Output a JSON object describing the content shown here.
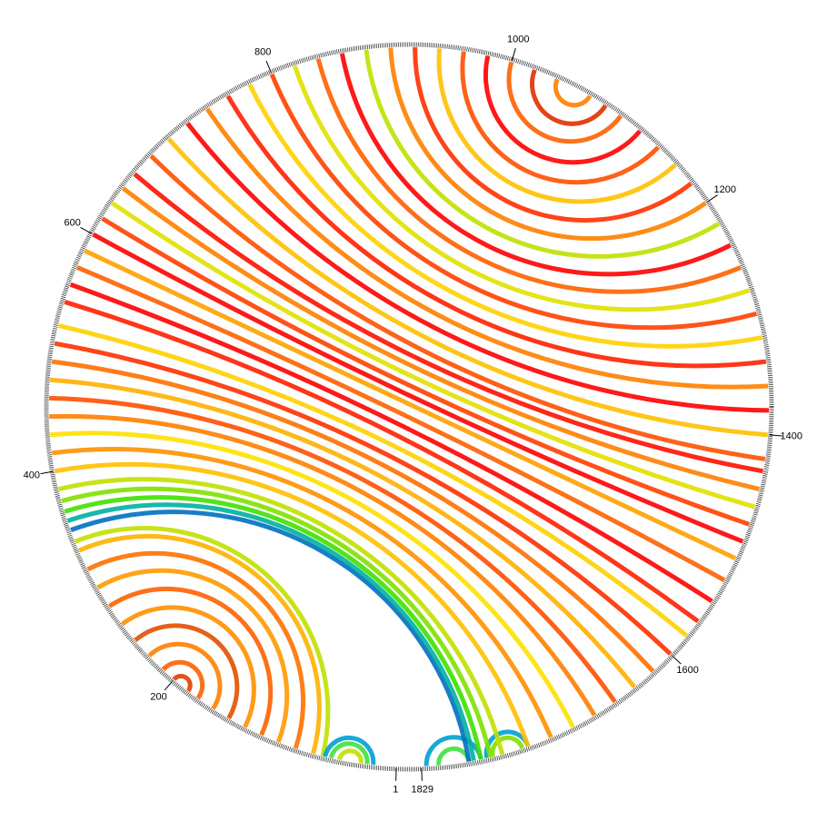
{
  "chart_data": {
    "type": "arc",
    "ticks": [
      1,
      200,
      400,
      600,
      800,
      1000,
      1200,
      1400,
      1600,
      1829
    ],
    "arcs": [
      {
        "from": 185,
        "to": 200,
        "color": "#e04000"
      },
      {
        "from": 175,
        "to": 212,
        "color": "#ff6000"
      },
      {
        "from": 160,
        "to": 228,
        "color": "#ff8000"
      },
      {
        "from": 145,
        "to": 245,
        "color": "#e05000"
      },
      {
        "from": 130,
        "to": 262,
        "color": "#ff9000"
      },
      {
        "from": 115,
        "to": 280,
        "color": "#ff6000"
      },
      {
        "from": 100,
        "to": 298,
        "color": "#ff9a00"
      },
      {
        "from": 85,
        "to": 315,
        "color": "#ff7000"
      },
      {
        "from": 70,
        "to": 332,
        "color": "#ffb000"
      },
      {
        "from": 62,
        "to": 340,
        "color": "#c0e000"
      },
      {
        "from": 20,
        "to": 60,
        "color": "#00a0d0"
      },
      {
        "from": 25,
        "to": 55,
        "color": "#40e040"
      },
      {
        "from": 30,
        "to": 48,
        "color": "#c0e000"
      },
      {
        "from": 1780,
        "to": 1825,
        "color": "#00a0d0"
      },
      {
        "from": 1790,
        "to": 1815,
        "color": "#40e040"
      },
      {
        "from": 1740,
        "to": 1775,
        "color": "#00a0d0"
      },
      {
        "from": 1745,
        "to": 1770,
        "color": "#80e000"
      },
      {
        "from": 350,
        "to": 1790,
        "color": "#0070c0"
      },
      {
        "from": 358,
        "to": 1786,
        "color": "#00b0a0"
      },
      {
        "from": 366,
        "to": 1780,
        "color": "#40e000"
      },
      {
        "from": 375,
        "to": 1772,
        "color": "#80e000"
      },
      {
        "from": 385,
        "to": 1762,
        "color": "#c0e000"
      },
      {
        "from": 400,
        "to": 1740,
        "color": "#ffc000"
      },
      {
        "from": 415,
        "to": 1720,
        "color": "#ff9000"
      },
      {
        "from": 430,
        "to": 1700,
        "color": "#ffe000"
      },
      {
        "from": 445,
        "to": 1680,
        "color": "#ff8000"
      },
      {
        "from": 460,
        "to": 1660,
        "color": "#ff5000"
      },
      {
        "from": 475,
        "to": 1640,
        "color": "#ffb000"
      },
      {
        "from": 490,
        "to": 1620,
        "color": "#ff7000"
      },
      {
        "from": 505,
        "to": 1600,
        "color": "#ff3000"
      },
      {
        "from": 520,
        "to": 1580,
        "color": "#ffd000"
      },
      {
        "from": 540,
        "to": 1565,
        "color": "#ff2000"
      },
      {
        "from": 555,
        "to": 1545,
        "color": "#ff0000"
      },
      {
        "from": 570,
        "to": 1525,
        "color": "#ff6000"
      },
      {
        "from": 585,
        "to": 1505,
        "color": "#ffa000"
      },
      {
        "from": 600,
        "to": 1490,
        "color": "#ff0000"
      },
      {
        "from": 615,
        "to": 1475,
        "color": "#ff4000"
      },
      {
        "from": 630,
        "to": 1460,
        "color": "#e0e000"
      },
      {
        "from": 645,
        "to": 1445,
        "color": "#ff8000"
      },
      {
        "from": 660,
        "to": 1430,
        "color": "#ff1000"
      },
      {
        "from": 680,
        "to": 1420,
        "color": "#ff5000"
      },
      {
        "from": 700,
        "to": 1400,
        "color": "#ffc000"
      },
      {
        "from": 720,
        "to": 1380,
        "color": "#ff0000"
      },
      {
        "from": 740,
        "to": 1360,
        "color": "#ff8000"
      },
      {
        "from": 760,
        "to": 1340,
        "color": "#ff2000"
      },
      {
        "from": 780,
        "to": 1320,
        "color": "#ffd000"
      },
      {
        "from": 800,
        "to": 1300,
        "color": "#ff4000"
      },
      {
        "from": 820,
        "to": 1280,
        "color": "#e0e000"
      },
      {
        "from": 840,
        "to": 1260,
        "color": "#ff6000"
      },
      {
        "from": 860,
        "to": 1240,
        "color": "#ff0000"
      },
      {
        "from": 880,
        "to": 1220,
        "color": "#c0e000"
      },
      {
        "from": 900,
        "to": 1200,
        "color": "#ff8000"
      },
      {
        "from": 920,
        "to": 1180,
        "color": "#ff3000"
      },
      {
        "from": 940,
        "to": 1160,
        "color": "#ffc000"
      },
      {
        "from": 960,
        "to": 1140,
        "color": "#ff5000"
      },
      {
        "from": 980,
        "to": 1120,
        "color": "#ff0000"
      },
      {
        "from": 1000,
        "to": 1100,
        "color": "#ff6000"
      },
      {
        "from": 1020,
        "to": 1085,
        "color": "#e03000"
      },
      {
        "from": 1040,
        "to": 1070,
        "color": "#ff8000"
      }
    ]
  }
}
